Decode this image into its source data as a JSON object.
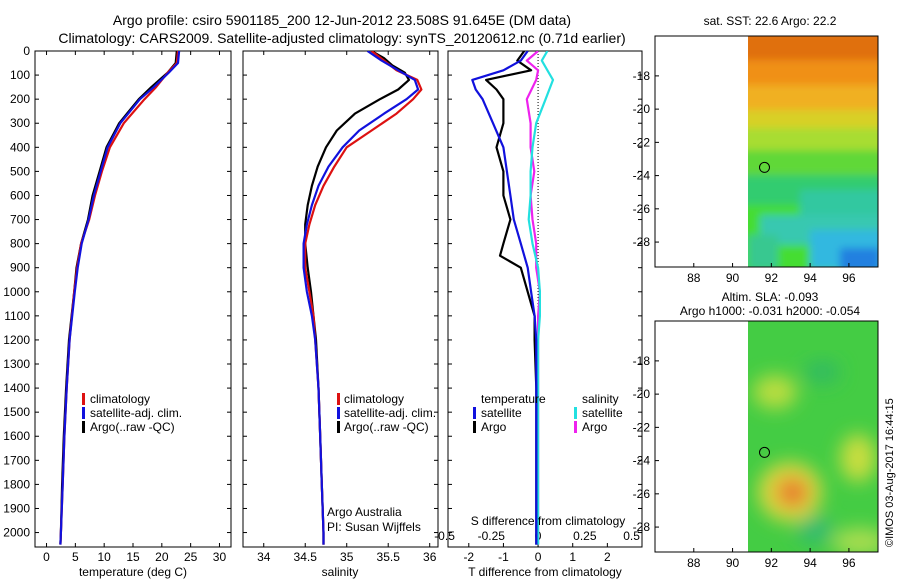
{
  "titles": {
    "line1": "Argo profile: csiro 5901185_200 12-Jun-2012 23.508S 91.645E (DM data)",
    "line2": "Climatology: CARS2009. Satellite-adjusted climatology: synTS_20120612.nc (0.71d earlier)"
  },
  "colors": {
    "climatology": "#dd1111",
    "satellite": "#1111dd",
    "argo": "#000000",
    "sat_salinity": "#22e0e0",
    "argo_salinity": "#ee22ee"
  },
  "depth_axis": {
    "ticks": [
      "0",
      "100",
      "200",
      "300",
      "400",
      "500",
      "600",
      "700",
      "800",
      "900",
      "1000",
      "1100",
      "1200",
      "1300",
      "1400",
      "1500",
      "1600",
      "1700",
      "1800",
      "1900",
      "2000"
    ]
  },
  "chart_data": [
    {
      "type": "line",
      "id": "temperature",
      "xlabel": "temperature (deg C)",
      "ylabel": "depth",
      "xlim": [
        -2,
        32
      ],
      "ylim": [
        2060,
        0
      ],
      "xticks": [
        "0",
        "5",
        "10",
        "15",
        "20",
        "25",
        "30"
      ],
      "legend": [
        "climatology",
        "satellite-adj. clim.",
        "Argo(..raw -QC)"
      ],
      "series": [
        {
          "name": "climatology",
          "depth": [
            0,
            50,
            90,
            150,
            200,
            300,
            400,
            500,
            600,
            700,
            800,
            900,
            1000,
            1200,
            1400,
            1600,
            1800,
            2000,
            2050
          ],
          "values": [
            22.8,
            22.6,
            21.0,
            19.0,
            17.0,
            13.4,
            11.0,
            9.6,
            8.4,
            7.4,
            6.0,
            5.3,
            4.8,
            4.0,
            3.5,
            3.1,
            2.8,
            2.5,
            2.4
          ]
        },
        {
          "name": "satellite-adj. clim.",
          "depth": [
            0,
            50,
            90,
            150,
            200,
            300,
            400,
            500,
            600,
            700,
            800,
            900,
            1000,
            1200,
            1400,
            1600,
            1800,
            2000,
            2050
          ],
          "values": [
            23.0,
            22.8,
            21.2,
            18.6,
            16.2,
            12.8,
            10.6,
            9.4,
            8.2,
            7.3,
            6.1,
            5.4,
            4.9,
            4.0,
            3.5,
            3.1,
            2.8,
            2.5,
            2.4
          ]
        },
        {
          "name": "Argo(..raw -QC)",
          "depth": [
            0,
            50,
            90,
            150,
            200,
            300,
            400,
            500,
            600,
            700,
            800,
            900,
            1000,
            1200,
            1400,
            1600,
            1800,
            2000,
            2050
          ],
          "values": [
            22.6,
            22.4,
            21.0,
            18.2,
            16.0,
            12.6,
            10.4,
            9.2,
            8.0,
            7.2,
            6.0,
            5.2,
            4.8,
            3.9,
            3.4,
            3.0,
            2.7,
            2.5,
            2.4
          ]
        }
      ]
    },
    {
      "type": "line",
      "id": "salinity",
      "xlabel": "salinity",
      "ylabel": "depth",
      "xlim": [
        33.75,
        36.1
      ],
      "ylim": [
        2060,
        0
      ],
      "xticks": [
        "34",
        "34.5",
        "35",
        "35.5",
        "36"
      ],
      "legend": [
        "climatology",
        "satellite-adj. clim.",
        "Argo(..raw -QC)"
      ],
      "annotation": [
        "Argo Australia",
        "PI: Susan Wijffels"
      ],
      "series": [
        {
          "name": "climatology",
          "depth": [
            0,
            40,
            80,
            120,
            160,
            200,
            260,
            330,
            400,
            480,
            560,
            640,
            720,
            800,
            900,
            1000,
            1100,
            1200,
            1400,
            1600,
            1800,
            2000,
            2050
          ],
          "values": [
            35.3,
            35.45,
            35.6,
            35.85,
            35.9,
            35.8,
            35.6,
            35.3,
            35.0,
            34.85,
            34.72,
            34.62,
            34.55,
            34.5,
            34.5,
            34.55,
            34.6,
            34.62,
            34.66,
            34.68,
            34.7,
            34.72,
            34.72
          ]
        },
        {
          "name": "satellite-adj. clim.",
          "depth": [
            0,
            40,
            80,
            120,
            160,
            200,
            260,
            330,
            400,
            480,
            560,
            640,
            720,
            800,
            900,
            1000,
            1100,
            1200,
            1400,
            1600,
            1800,
            2000,
            2050
          ],
          "values": [
            35.25,
            35.42,
            35.62,
            35.82,
            35.86,
            35.72,
            35.45,
            35.15,
            34.95,
            34.78,
            34.66,
            34.58,
            34.52,
            34.48,
            34.48,
            34.52,
            34.58,
            34.62,
            34.66,
            34.68,
            34.7,
            34.72,
            34.72
          ]
        },
        {
          "name": "Argo(..raw -QC)",
          "depth": [
            0,
            30,
            60,
            90,
            120,
            160,
            200,
            260,
            330,
            400,
            480,
            560,
            640,
            720,
            800,
            900,
            1000,
            1100,
            1200,
            1400,
            1600,
            1800,
            2000,
            2050
          ],
          "values": [
            35.3,
            35.45,
            35.55,
            35.7,
            35.75,
            35.62,
            35.4,
            35.1,
            34.88,
            34.75,
            34.65,
            34.58,
            34.53,
            34.5,
            34.5,
            34.53,
            34.57,
            34.6,
            34.63,
            34.66,
            34.68,
            34.7,
            34.72,
            34.72
          ]
        }
      ]
    },
    {
      "type": "line",
      "id": "difference",
      "xlabel": "T difference from climatology",
      "xlabel_top": "S difference from climatology",
      "xlim": [
        -2.6,
        3.0
      ],
      "ylim": [
        2060,
        0
      ],
      "xticks": [
        "-2",
        "-1",
        "0",
        "1",
        "2"
      ],
      "xticks_top": [
        "-0.5",
        "-0.25",
        "0",
        "0.25",
        "0.5"
      ],
      "legend": [
        {
          "group": "temperature",
          "items": [
            "satellite",
            "Argo"
          ]
        },
        {
          "group": "salinity",
          "items": [
            "satellite",
            "Argo"
          ]
        }
      ],
      "series": [
        {
          "name": "temperature satellite",
          "depth": [
            0,
            40,
            80,
            120,
            160,
            200,
            300,
            400,
            500,
            600,
            700,
            800,
            900,
            1000,
            1100,
            1200,
            1400,
            1600,
            1800,
            2000,
            2050
          ],
          "values": [
            -0.3,
            -0.5,
            -1.0,
            -1.9,
            -1.8,
            -1.6,
            -1.3,
            -1.0,
            -0.9,
            -0.8,
            -0.7,
            -0.5,
            -0.3,
            -0.2,
            -0.1,
            -0.05,
            -0.05,
            -0.05,
            -0.05,
            -0.05,
            -0.05
          ]
        },
        {
          "name": "temperature Argo",
          "depth": [
            0,
            40,
            80,
            120,
            160,
            200,
            300,
            400,
            500,
            600,
            700,
            800,
            850,
            900,
            1000,
            1100,
            1200,
            1400,
            1600,
            1800,
            2000,
            2050
          ],
          "values": [
            -0.4,
            -0.6,
            -0.2,
            -1.5,
            -1.2,
            -1.0,
            -1.0,
            -1.2,
            -1.0,
            -1.0,
            -0.8,
            -1.0,
            -1.1,
            -0.5,
            -0.3,
            -0.1,
            -0.1,
            -0.05,
            -0.05,
            -0.05,
            -0.05,
            -0.05
          ]
        },
        {
          "name": "salinity satellite",
          "depth": [
            0,
            40,
            80,
            120,
            200,
            300,
            400,
            500,
            600,
            700,
            800,
            900,
            1000,
            1100,
            1200,
            1400,
            1600,
            1800,
            2000,
            2050
          ],
          "values": [
            0.05,
            0.02,
            0.05,
            0.08,
            0.04,
            -0.01,
            -0.03,
            -0.04,
            -0.04,
            -0.05,
            -0.03,
            0.0,
            0.01,
            0.01,
            0.0,
            0.0,
            0.0,
            0.0,
            0.0,
            0.0
          ]
        },
        {
          "name": "salinity Argo",
          "depth": [
            0,
            40,
            80,
            120,
            200,
            300,
            400,
            500,
            600,
            700,
            800,
            900,
            1000,
            1100,
            1200,
            1400,
            1600,
            1800,
            2000,
            2050
          ],
          "values": [
            0.0,
            -0.06,
            0.0,
            -0.01,
            -0.06,
            -0.04,
            -0.04,
            -0.02,
            -0.04,
            -0.03,
            -0.01,
            -0.01,
            0.01,
            0.0,
            0.0,
            0.0,
            0.0,
            0.0,
            0.0,
            0.0
          ]
        }
      ]
    },
    {
      "type": "heatmap",
      "id": "sst_map",
      "title": "sat. SST: 22.6 Argo: 22.2",
      "xlim": [
        86,
        97.5
      ],
      "ylim": [
        -29.5,
        -15.6
      ],
      "xticks": [
        "88",
        "90",
        "92",
        "94",
        "96"
      ],
      "yticks": [
        "-18",
        "-20",
        "-22",
        "-24",
        "-26",
        "-28"
      ],
      "marker": {
        "lon": 91.645,
        "lat": -23.508
      }
    },
    {
      "type": "heatmap",
      "id": "sla_map",
      "title": "Altim. SLA: -0.093",
      "subtitle": "Argo h1000: -0.031 h2000: -0.054",
      "xlim": [
        86,
        97.5
      ],
      "ylim": [
        -29.5,
        -15.6
      ],
      "xticks": [
        "88",
        "90",
        "92",
        "94",
        "96"
      ],
      "yticks": [
        "-18",
        "-20",
        "-22",
        "-24",
        "-26",
        "-28"
      ],
      "marker": {
        "lon": 91.645,
        "lat": -23.508
      }
    }
  ],
  "stamp": "©IMOS 03-Aug-2017 16:44:15"
}
